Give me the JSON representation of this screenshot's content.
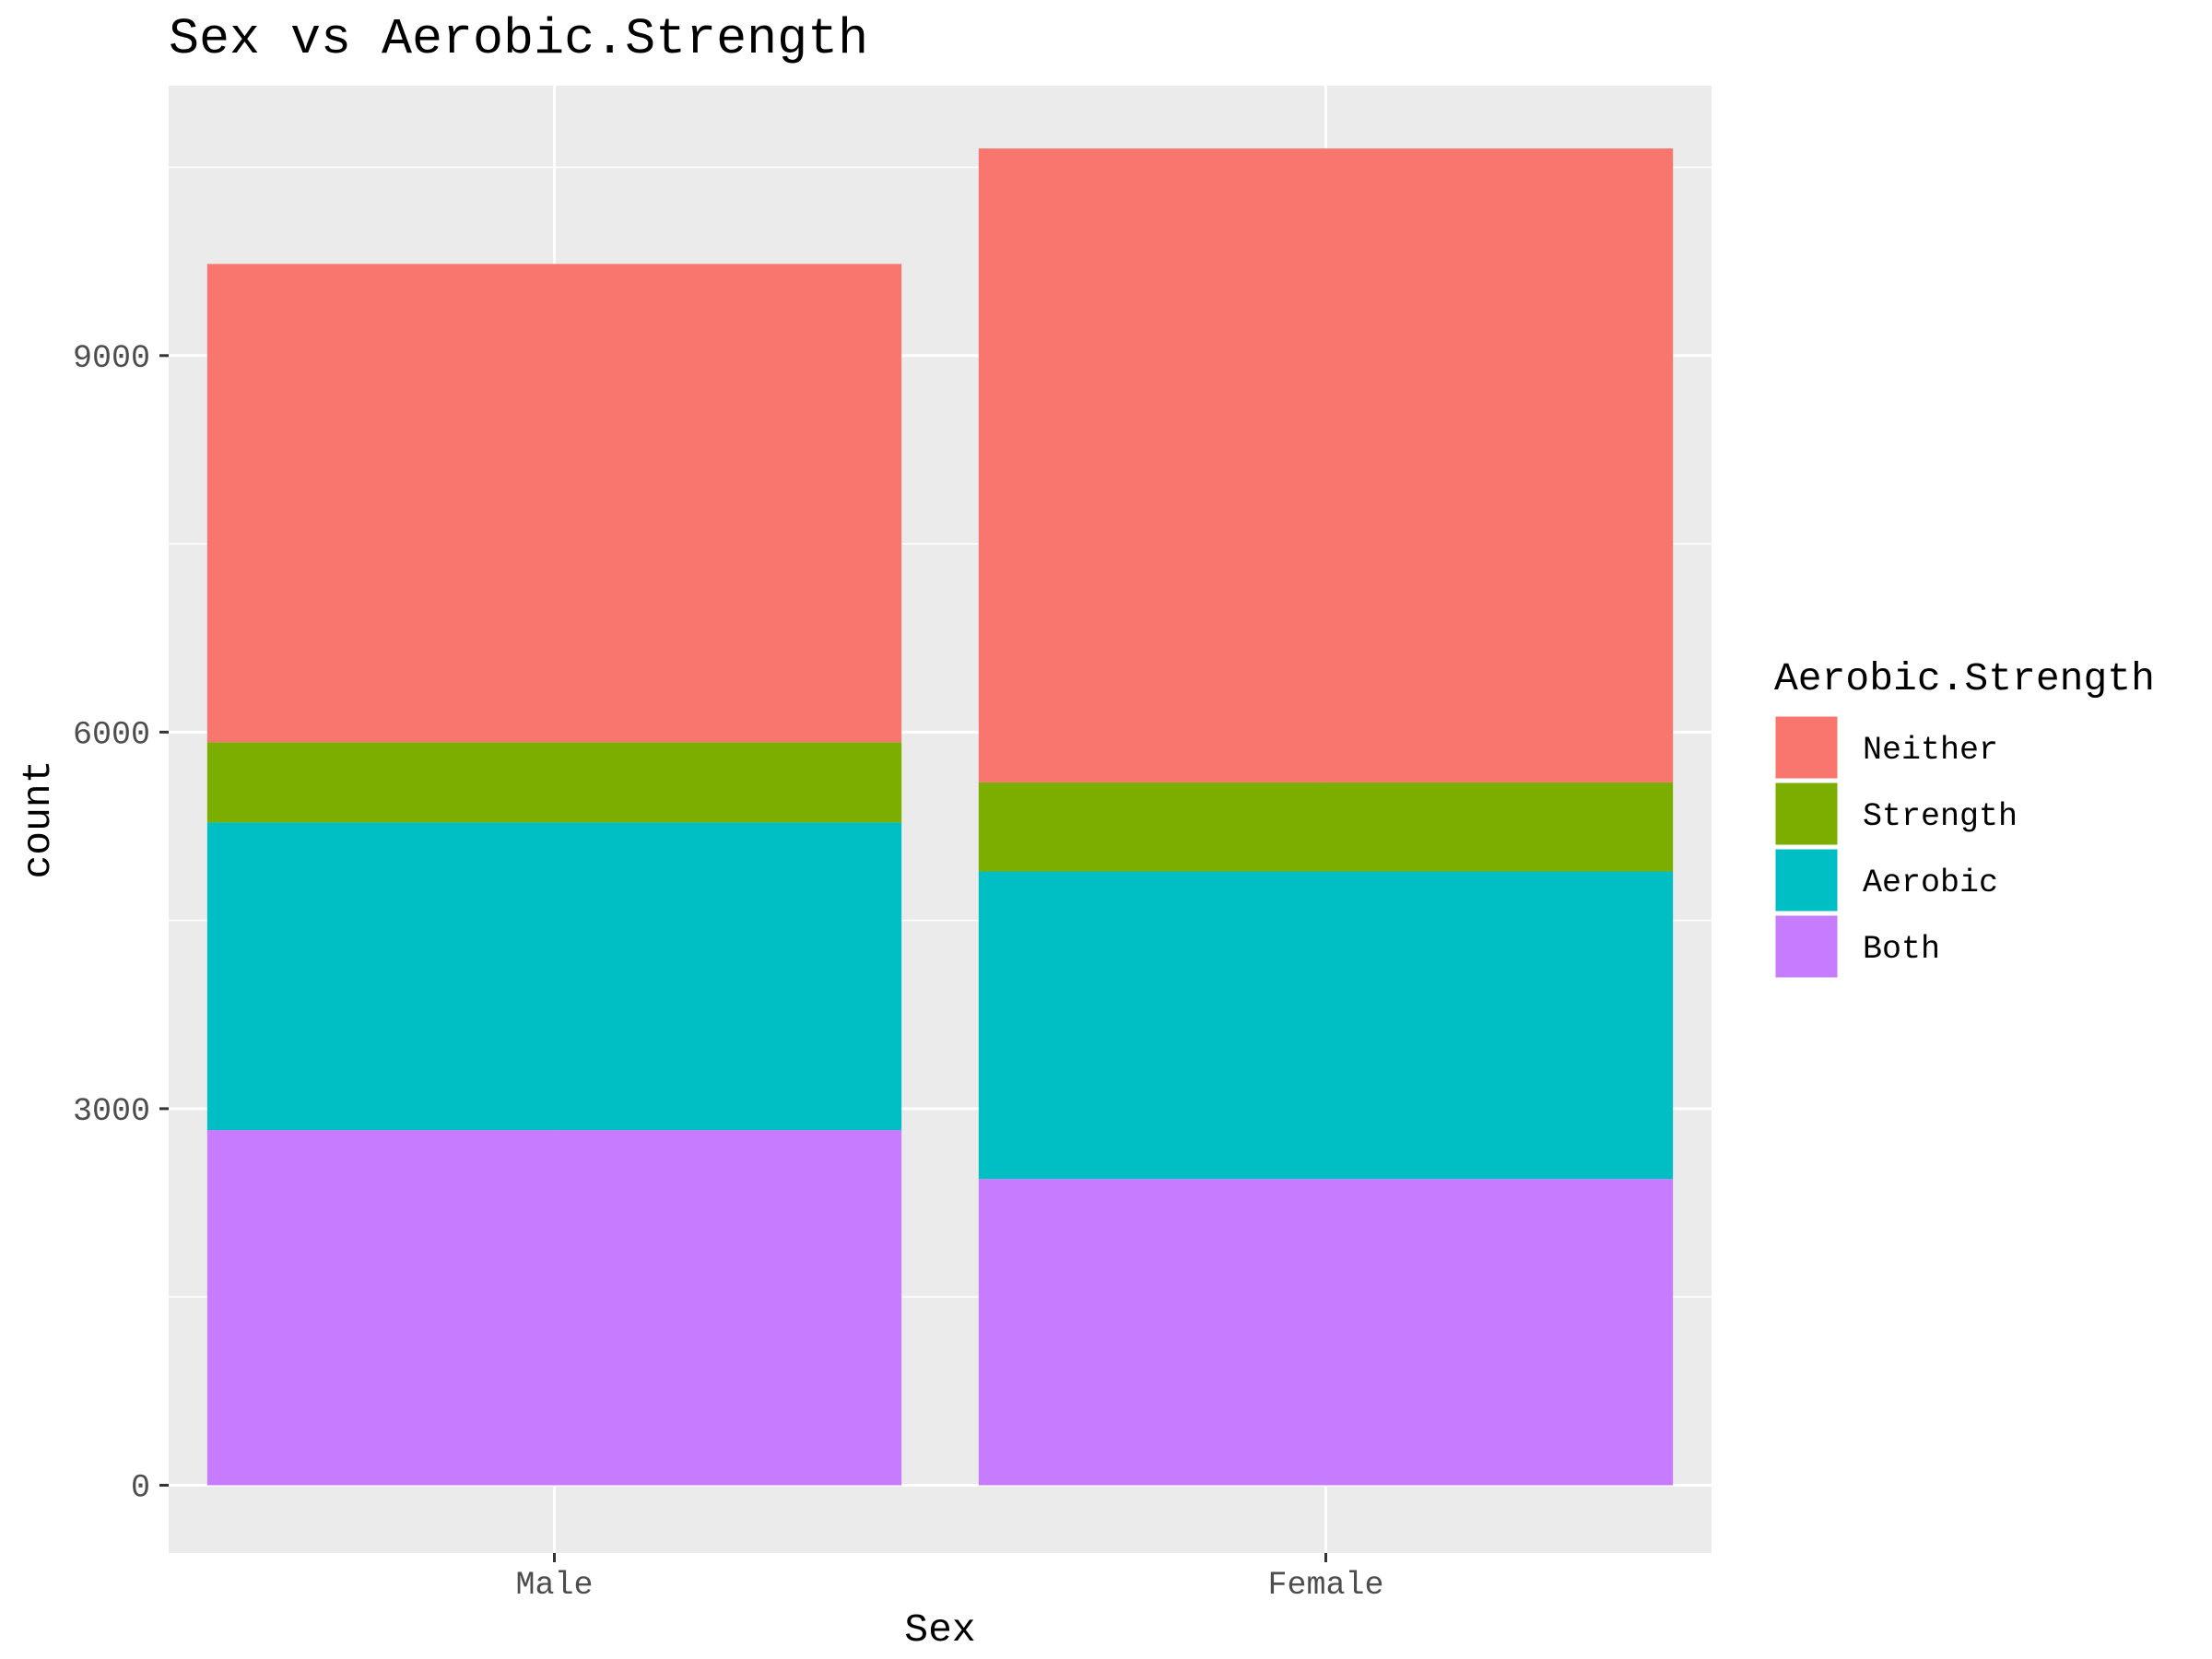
{
  "chart_data": {
    "type": "bar",
    "stacked": true,
    "title": "Sex vs Aerobic.Strength",
    "xlabel": "Sex",
    "ylabel": "count",
    "categories": [
      "Male",
      "Female"
    ],
    "ylim": [
      -540,
      11150
    ],
    "yticks": [
      0,
      3000,
      6000,
      9000
    ],
    "grid": true,
    "legend_title": "Aerobic.Strength",
    "legend_position": "right",
    "series": [
      {
        "name": "Both",
        "color": "#C77CFF",
        "values": [
          2830,
          2440
        ]
      },
      {
        "name": "Aerobic",
        "color": "#00BFC4",
        "values": [
          2450,
          2450
        ]
      },
      {
        "name": "Strength",
        "color": "#7CAE00",
        "values": [
          640,
          710
        ]
      },
      {
        "name": "Neither",
        "color": "#F8766D",
        "values": [
          3810,
          5050
        ]
      }
    ],
    "legend_order": [
      "Neither",
      "Strength",
      "Aerobic",
      "Both"
    ],
    "colors": {
      "panel_background": "#EBEBEB",
      "grid_line": "#FFFFFF",
      "tick_text": "#4D4D4D"
    }
  }
}
